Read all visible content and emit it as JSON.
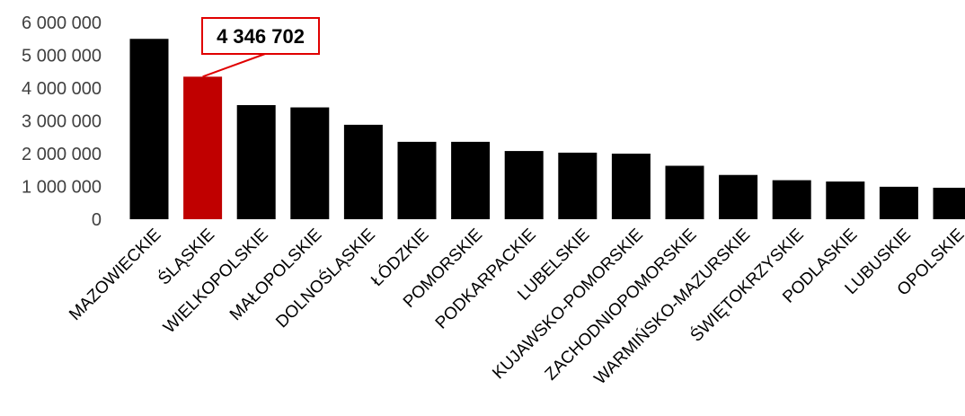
{
  "chart_data": {
    "type": "bar",
    "title": "",
    "xlabel": "",
    "ylabel": "",
    "ylim": [
      0,
      6000000
    ],
    "yticks": [
      0,
      1000000,
      2000000,
      3000000,
      4000000,
      5000000,
      6000000
    ],
    "ytick_labels": [
      "0",
      "1 000 000",
      "2 000 000",
      "3 000 000",
      "4 000 000",
      "5 000 000",
      "6 000 000"
    ],
    "grid": false,
    "legend": "none",
    "categories": [
      "MAZOWIECKIE",
      "ŚLĄSKIE",
      "WIELKOPOLSKIE",
      "MAŁOPOLSKIE",
      "DOLNOŚLĄSKIE",
      "ŁÓDZKIE",
      "POMORSKIE",
      "PODKARPACKIE",
      "LUBELSKIE",
      "KUJAWSKO-POMORSKIE",
      "ZACHODNIOPOMORSKIE",
      "WARMIŃSKO-MAZURSKIE",
      "ŚWIĘTOKRZYSKIE",
      "PODLASKIE",
      "LUBUSKIE",
      "OPOLSKIE"
    ],
    "values": [
      5500000,
      4346702,
      3480000,
      3410000,
      2880000,
      2360000,
      2360000,
      2080000,
      2030000,
      2000000,
      1630000,
      1350000,
      1190000,
      1150000,
      990000,
      960000
    ],
    "highlight_index": 1,
    "callout": {
      "category": "ŚLĄSKIE",
      "text": "4 346 702"
    },
    "colors": {
      "default": "#000000",
      "highlight": "#c00000",
      "callout_border": "#e00000"
    }
  }
}
